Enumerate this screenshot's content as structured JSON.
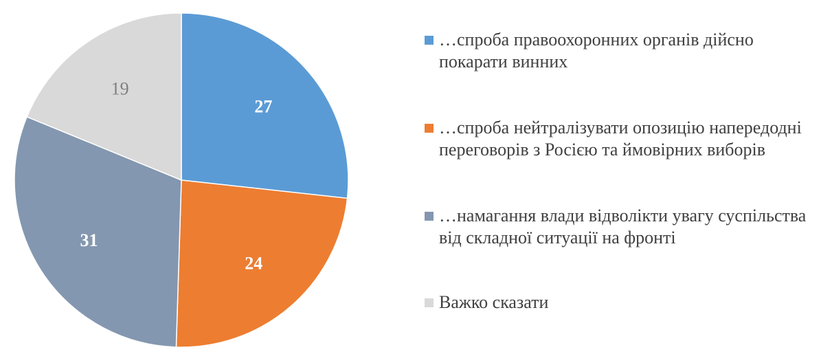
{
  "chart_data": {
    "type": "pie",
    "start_angle_deg": 0,
    "direction": "clockwise",
    "slices": [
      {
        "label": "…спроба правоохоронних органів дійсно покарати винних",
        "value": 27,
        "display": "27",
        "color": "#5B9BD5",
        "label_color": "#FFFFFF",
        "label_bold": true
      },
      {
        "label": "…спроба нейтралізувати опозицію напередодні переговорів з Росією та ймовірних виборів",
        "value": 24,
        "display": "24",
        "color": "#ED7D31",
        "label_color": "#FFFFFF",
        "label_bold": true
      },
      {
        "label": "…намагання влади відволікти увагу суспільства від складної ситуації на фронті",
        "value": 31,
        "display": "31",
        "color": "#8497B0",
        "label_color": "#FFFFFF",
        "label_bold": true
      },
      {
        "label": "Важко сказати",
        "value": 19,
        "display": "19",
        "color": "#D9D9D9",
        "label_color": "#7F7F7F",
        "label_bold": false
      }
    ],
    "legend_position": "right"
  }
}
